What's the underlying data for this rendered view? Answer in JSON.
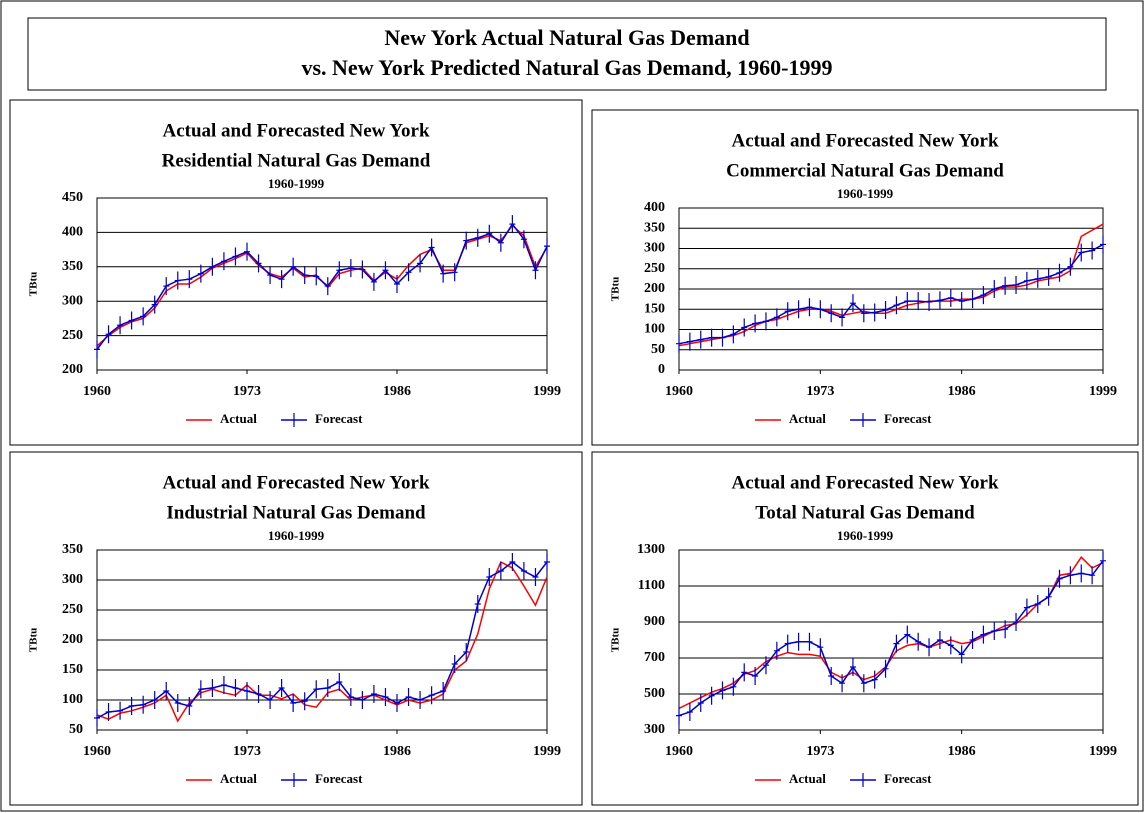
{
  "title": [
    "New York Actual Natural Gas Demand",
    "vs. New York Predicted Natural Gas Demand, 1960-1999"
  ],
  "chart_data": [
    {
      "type": "line",
      "title": [
        "Actual and Forecasted New York",
        "Residential Natural Gas Demand"
      ],
      "subtitle": "1960-1999",
      "ylabel": "TBtu",
      "x": [
        1960,
        1961,
        1962,
        1963,
        1964,
        1965,
        1966,
        1967,
        1968,
        1969,
        1970,
        1971,
        1972,
        1973,
        1974,
        1975,
        1976,
        1977,
        1978,
        1979,
        1980,
        1981,
        1982,
        1983,
        1984,
        1985,
        1986,
        1987,
        1988,
        1989,
        1990,
        1991,
        1992,
        1993,
        1994,
        1995,
        1996,
        1997,
        1998,
        1999
      ],
      "xlim": [
        1960,
        1999
      ],
      "xticks": [
        1960,
        1973,
        1986,
        1999
      ],
      "ylim": [
        200,
        450
      ],
      "yticks": [
        200,
        250,
        300,
        350,
        400,
        450
      ],
      "grid": true,
      "legend": "bottom",
      "series": [
        {
          "name": "Actual",
          "color": "#ff0000",
          "values": [
            235,
            250,
            262,
            270,
            275,
            290,
            315,
            325,
            325,
            335,
            348,
            355,
            362,
            370,
            352,
            340,
            335,
            348,
            335,
            338,
            320,
            340,
            345,
            348,
            330,
            342,
            332,
            352,
            368,
            375,
            345,
            345,
            385,
            390,
            395,
            388,
            410,
            395,
            350,
            378
          ]
        },
        {
          "name": "Forecast",
          "color": "#0000cc",
          "values": [
            230,
            252,
            265,
            272,
            278,
            295,
            322,
            330,
            332,
            340,
            350,
            358,
            365,
            372,
            355,
            338,
            332,
            350,
            338,
            336,
            322,
            345,
            348,
            346,
            328,
            345,
            325,
            342,
            355,
            378,
            340,
            342,
            388,
            392,
            398,
            385,
            412,
            390,
            345,
            380
          ]
        }
      ]
    },
    {
      "type": "line",
      "title": [
        "Actual and Forecasted New York",
        "Commercial Natural Gas Demand"
      ],
      "subtitle": "1960-1999",
      "ylabel": "TBtu",
      "x": [
        1960,
        1961,
        1962,
        1963,
        1964,
        1965,
        1966,
        1967,
        1968,
        1969,
        1970,
        1971,
        1972,
        1973,
        1974,
        1975,
        1976,
        1977,
        1978,
        1979,
        1980,
        1981,
        1982,
        1983,
        1984,
        1985,
        1986,
        1987,
        1988,
        1989,
        1990,
        1991,
        1992,
        1993,
        1994,
        1995,
        1996,
        1997,
        1998,
        1999
      ],
      "xlim": [
        1960,
        1999
      ],
      "xticks": [
        1960,
        1973,
        1986,
        1999
      ],
      "ylim": [
        0,
        400
      ],
      "yticks": [
        0,
        50,
        100,
        150,
        200,
        250,
        300,
        350,
        400
      ],
      "grid": true,
      "legend": "bottom",
      "series": [
        {
          "name": "Actual",
          "color": "#ff0000",
          "values": [
            60,
            65,
            70,
            75,
            80,
            85,
            95,
            110,
            120,
            125,
            135,
            145,
            150,
            150,
            145,
            135,
            140,
            145,
            140,
            140,
            150,
            160,
            165,
            170,
            170,
            170,
            175,
            175,
            180,
            195,
            205,
            205,
            210,
            220,
            225,
            230,
            245,
            330,
            345,
            360
          ]
        },
        {
          "name": "Forecast",
          "color": "#0000cc",
          "values": [
            65,
            70,
            75,
            80,
            80,
            88,
            105,
            115,
            120,
            130,
            145,
            150,
            155,
            150,
            140,
            130,
            165,
            140,
            142,
            148,
            160,
            170,
            170,
            168,
            172,
            178,
            170,
            175,
            185,
            200,
            208,
            210,
            220,
            225,
            230,
            240,
            255,
            290,
            295,
            310
          ]
        }
      ]
    },
    {
      "type": "line",
      "title": [
        "Actual and Forecasted New York",
        "Industrial Natural Gas Demand"
      ],
      "subtitle": "1960-1999",
      "ylabel": "TBtu",
      "x": [
        1960,
        1961,
        1962,
        1963,
        1964,
        1965,
        1966,
        1967,
        1968,
        1969,
        1970,
        1971,
        1972,
        1973,
        1974,
        1975,
        1976,
        1977,
        1978,
        1979,
        1980,
        1981,
        1982,
        1983,
        1984,
        1985,
        1986,
        1987,
        1988,
        1989,
        1990,
        1991,
        1992,
        1993,
        1994,
        1995,
        1996,
        1997,
        1998,
        1999
      ],
      "xlim": [
        1960,
        1999
      ],
      "xticks": [
        1960,
        1973,
        1986,
        1999
      ],
      "ylim": [
        50,
        350
      ],
      "yticks": [
        50,
        100,
        150,
        200,
        250,
        300,
        350
      ],
      "grid": true,
      "legend": "bottom",
      "series": [
        {
          "name": "Actual",
          "color": "#ff0000",
          "values": [
            75,
            68,
            78,
            82,
            88,
            95,
            108,
            65,
            95,
            112,
            118,
            112,
            108,
            125,
            108,
            108,
            102,
            110,
            92,
            88,
            112,
            118,
            100,
            105,
            108,
            100,
            92,
            100,
            95,
            100,
            110,
            150,
            165,
            210,
            285,
            330,
            320,
            290,
            258,
            305
          ]
        },
        {
          "name": "Forecast",
          "color": "#0000cc",
          "values": [
            70,
            80,
            82,
            90,
            92,
            100,
            115,
            95,
            90,
            118,
            120,
            125,
            120,
            115,
            110,
            100,
            120,
            95,
            98,
            118,
            120,
            130,
            105,
            100,
            110,
            105,
            95,
            105,
            100,
            108,
            115,
            160,
            180,
            260,
            305,
            315,
            330,
            315,
            305,
            330
          ]
        }
      ]
    },
    {
      "type": "line",
      "title": [
        "Actual and Forecasted New York",
        "Total Natural Gas Demand"
      ],
      "subtitle": "1960-1999",
      "ylabel": "TBtu",
      "x": [
        1960,
        1961,
        1962,
        1963,
        1964,
        1965,
        1966,
        1967,
        1968,
        1969,
        1970,
        1971,
        1972,
        1973,
        1974,
        1975,
        1976,
        1977,
        1978,
        1979,
        1980,
        1981,
        1982,
        1983,
        1984,
        1985,
        1986,
        1987,
        1988,
        1989,
        1990,
        1991,
        1992,
        1993,
        1994,
        1995,
        1996,
        1997,
        1998,
        1999
      ],
      "xlim": [
        1960,
        1999
      ],
      "xticks": [
        1960,
        1973,
        1986,
        1999
      ],
      "ylim": [
        300,
        1300
      ],
      "yticks": [
        300,
        500,
        700,
        900,
        1100,
        1300
      ],
      "grid": true,
      "legend": "bottom",
      "series": [
        {
          "name": "Actual",
          "color": "#ff0000",
          "values": [
            420,
            450,
            480,
            510,
            530,
            560,
            610,
            630,
            680,
            710,
            730,
            720,
            720,
            710,
            620,
            590,
            620,
            580,
            600,
            650,
            740,
            770,
            780,
            760,
            780,
            800,
            780,
            790,
            820,
            850,
            880,
            890,
            940,
            1000,
            1040,
            1160,
            1170,
            1260,
            1200,
            1230
          ]
        },
        {
          "name": "Forecast",
          "color": "#0000cc",
          "values": [
            380,
            400,
            450,
            490,
            520,
            540,
            620,
            600,
            660,
            740,
            780,
            790,
            790,
            760,
            600,
            560,
            650,
            560,
            580,
            640,
            780,
            830,
            790,
            760,
            800,
            770,
            720,
            800,
            830,
            850,
            860,
            900,
            980,
            1000,
            1040,
            1140,
            1160,
            1170,
            1160,
            1240
          ]
        }
      ]
    }
  ]
}
